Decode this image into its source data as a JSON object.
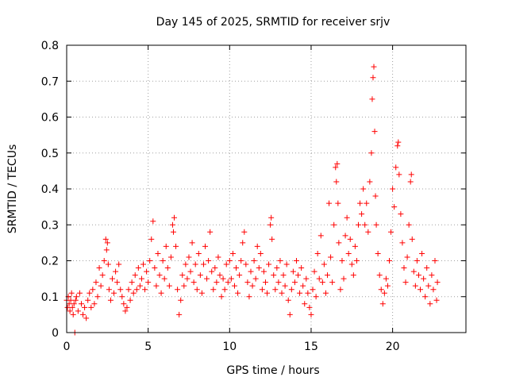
{
  "chart_data": {
    "type": "scatter",
    "title": "Day 145 of 2025, SRMTID for receiver srjv",
    "xlabel": "GPS time / hours",
    "ylabel": "SRMTID / TECUs",
    "xlim": [
      0,
      24.5
    ],
    "ylim": [
      0,
      0.8
    ],
    "xticks": [
      0,
      5,
      10,
      15,
      20
    ],
    "xtick_labels": [
      "0",
      "5",
      "10",
      "15",
      "20"
    ],
    "yticks": [
      0,
      0.1,
      0.2,
      0.3,
      0.4,
      0.5,
      0.6,
      0.7,
      0.8
    ],
    "ytick_labels": [
      "0",
      "0.1",
      "0.2",
      "0.3",
      "0.4",
      "0.5",
      "0.6",
      "0.7",
      "0.8"
    ],
    "grid": true,
    "marker": "plus",
    "color": "#ff0000",
    "series": [
      {
        "name": "SRMTID",
        "points": [
          [
            0.0,
            0.09
          ],
          [
            0.05,
            0.07
          ],
          [
            0.1,
            0.1
          ],
          [
            0.15,
            0.08
          ],
          [
            0.2,
            0.06
          ],
          [
            0.25,
            0.09
          ],
          [
            0.3,
            0.11
          ],
          [
            0.35,
            0.07
          ],
          [
            0.4,
            0.05
          ],
          [
            0.45,
            0.08
          ],
          [
            0.5,
            0.0
          ],
          [
            0.55,
            0.09
          ],
          [
            0.6,
            0.1
          ],
          [
            0.7,
            0.06
          ],
          [
            0.8,
            0.11
          ],
          [
            0.9,
            0.08
          ],
          [
            1.0,
            0.05
          ],
          [
            1.1,
            0.07
          ],
          [
            1.2,
            0.04
          ],
          [
            1.3,
            0.09
          ],
          [
            1.4,
            0.11
          ],
          [
            1.5,
            0.07
          ],
          [
            1.6,
            0.12
          ],
          [
            1.7,
            0.08
          ],
          [
            1.8,
            0.14
          ],
          [
            1.9,
            0.1
          ],
          [
            2.0,
            0.18
          ],
          [
            2.1,
            0.13
          ],
          [
            2.2,
            0.16
          ],
          [
            2.3,
            0.2
          ],
          [
            2.4,
            0.26
          ],
          [
            2.45,
            0.23
          ],
          [
            2.5,
            0.25
          ],
          [
            2.55,
            0.19
          ],
          [
            2.6,
            0.12
          ],
          [
            2.7,
            0.09
          ],
          [
            2.8,
            0.15
          ],
          [
            2.9,
            0.11
          ],
          [
            3.0,
            0.17
          ],
          [
            3.1,
            0.14
          ],
          [
            3.2,
            0.19
          ],
          [
            3.3,
            0.12
          ],
          [
            3.4,
            0.1
          ],
          [
            3.5,
            0.08
          ],
          [
            3.6,
            0.06
          ],
          [
            3.7,
            0.07
          ],
          [
            3.8,
            0.12
          ],
          [
            3.9,
            0.09
          ],
          [
            4.0,
            0.14
          ],
          [
            4.1,
            0.11
          ],
          [
            4.2,
            0.16
          ],
          [
            4.3,
            0.12
          ],
          [
            4.4,
            0.18
          ],
          [
            4.5,
            0.13
          ],
          [
            4.6,
            0.15
          ],
          [
            4.7,
            0.19
          ],
          [
            4.8,
            0.12
          ],
          [
            4.9,
            0.17
          ],
          [
            5.0,
            0.14
          ],
          [
            5.1,
            0.2
          ],
          [
            5.2,
            0.26
          ],
          [
            5.3,
            0.31
          ],
          [
            5.4,
            0.18
          ],
          [
            5.5,
            0.13
          ],
          [
            5.6,
            0.22
          ],
          [
            5.7,
            0.16
          ],
          [
            5.8,
            0.11
          ],
          [
            5.9,
            0.2
          ],
          [
            6.0,
            0.15
          ],
          [
            6.1,
            0.24
          ],
          [
            6.2,
            0.18
          ],
          [
            6.3,
            0.13
          ],
          [
            6.4,
            0.21
          ],
          [
            6.5,
            0.3
          ],
          [
            6.55,
            0.28
          ],
          [
            6.6,
            0.32
          ],
          [
            6.7,
            0.24
          ],
          [
            6.8,
            0.12
          ],
          [
            6.9,
            0.05
          ],
          [
            7.0,
            0.09
          ],
          [
            7.1,
            0.16
          ],
          [
            7.2,
            0.13
          ],
          [
            7.3,
            0.19
          ],
          [
            7.4,
            0.15
          ],
          [
            7.5,
            0.21
          ],
          [
            7.6,
            0.17
          ],
          [
            7.7,
            0.25
          ],
          [
            7.8,
            0.14
          ],
          [
            7.9,
            0.19
          ],
          [
            8.0,
            0.12
          ],
          [
            8.1,
            0.22
          ],
          [
            8.2,
            0.16
          ],
          [
            8.3,
            0.11
          ],
          [
            8.4,
            0.19
          ],
          [
            8.5,
            0.24
          ],
          [
            8.6,
            0.15
          ],
          [
            8.7,
            0.2
          ],
          [
            8.8,
            0.28
          ],
          [
            8.9,
            0.17
          ],
          [
            9.0,
            0.12
          ],
          [
            9.1,
            0.18
          ],
          [
            9.2,
            0.14
          ],
          [
            9.3,
            0.21
          ],
          [
            9.4,
            0.16
          ],
          [
            9.5,
            0.1
          ],
          [
            9.6,
            0.15
          ],
          [
            9.7,
            0.12
          ],
          [
            9.8,
            0.19
          ],
          [
            9.9,
            0.14
          ],
          [
            10.0,
            0.2
          ],
          [
            10.1,
            0.15
          ],
          [
            10.2,
            0.22
          ],
          [
            10.3,
            0.13
          ],
          [
            10.4,
            0.18
          ],
          [
            10.5,
            0.11
          ],
          [
            10.6,
            0.16
          ],
          [
            10.7,
            0.2
          ],
          [
            10.8,
            0.25
          ],
          [
            10.9,
            0.28
          ],
          [
            11.0,
            0.19
          ],
          [
            11.1,
            0.14
          ],
          [
            11.2,
            0.1
          ],
          [
            11.3,
            0.17
          ],
          [
            11.4,
            0.13
          ],
          [
            11.5,
            0.2
          ],
          [
            11.6,
            0.15
          ],
          [
            11.7,
            0.24
          ],
          [
            11.8,
            0.18
          ],
          [
            11.9,
            0.22
          ],
          [
            12.0,
            0.12
          ],
          [
            12.1,
            0.17
          ],
          [
            12.2,
            0.14
          ],
          [
            12.3,
            0.11
          ],
          [
            12.4,
            0.19
          ],
          [
            12.5,
            0.3
          ],
          [
            12.55,
            0.32
          ],
          [
            12.6,
            0.26
          ],
          [
            12.7,
            0.16
          ],
          [
            12.8,
            0.12
          ],
          [
            12.9,
            0.18
          ],
          [
            13.0,
            0.14
          ],
          [
            13.1,
            0.2
          ],
          [
            13.2,
            0.11
          ],
          [
            13.3,
            0.16
          ],
          [
            13.4,
            0.13
          ],
          [
            13.5,
            0.19
          ],
          [
            13.6,
            0.09
          ],
          [
            13.7,
            0.05
          ],
          [
            13.8,
            0.12
          ],
          [
            13.9,
            0.17
          ],
          [
            14.0,
            0.14
          ],
          [
            14.1,
            0.2
          ],
          [
            14.2,
            0.16
          ],
          [
            14.3,
            0.11
          ],
          [
            14.4,
            0.18
          ],
          [
            14.5,
            0.13
          ],
          [
            14.6,
            0.08
          ],
          [
            14.7,
            0.15
          ],
          [
            14.8,
            0.11
          ],
          [
            14.9,
            0.07
          ],
          [
            15.0,
            0.05
          ],
          [
            15.1,
            0.12
          ],
          [
            15.2,
            0.17
          ],
          [
            15.3,
            0.1
          ],
          [
            15.4,
            0.22
          ],
          [
            15.5,
            0.15
          ],
          [
            15.6,
            0.27
          ],
          [
            15.7,
            0.14
          ],
          [
            15.8,
            0.19
          ],
          [
            15.9,
            0.11
          ],
          [
            16.0,
            0.16
          ],
          [
            16.1,
            0.36
          ],
          [
            16.2,
            0.21
          ],
          [
            16.3,
            0.14
          ],
          [
            16.4,
            0.3
          ],
          [
            16.5,
            0.46
          ],
          [
            16.55,
            0.42
          ],
          [
            16.6,
            0.47
          ],
          [
            16.65,
            0.36
          ],
          [
            16.7,
            0.25
          ],
          [
            16.8,
            0.12
          ],
          [
            16.9,
            0.2
          ],
          [
            17.0,
            0.15
          ],
          [
            17.1,
            0.27
          ],
          [
            17.2,
            0.32
          ],
          [
            17.3,
            0.22
          ],
          [
            17.4,
            0.26
          ],
          [
            17.5,
            0.19
          ],
          [
            17.6,
            0.16
          ],
          [
            17.7,
            0.24
          ],
          [
            17.8,
            0.2
          ],
          [
            17.9,
            0.3
          ],
          [
            18.0,
            0.36
          ],
          [
            18.1,
            0.33
          ],
          [
            18.2,
            0.4
          ],
          [
            18.3,
            0.3
          ],
          [
            18.4,
            0.36
          ],
          [
            18.5,
            0.28
          ],
          [
            18.6,
            0.42
          ],
          [
            18.7,
            0.5
          ],
          [
            18.75,
            0.65
          ],
          [
            18.8,
            0.71
          ],
          [
            18.85,
            0.74
          ],
          [
            18.9,
            0.56
          ],
          [
            18.95,
            0.38
          ],
          [
            19.0,
            0.3
          ],
          [
            19.1,
            0.22
          ],
          [
            19.2,
            0.16
          ],
          [
            19.3,
            0.12
          ],
          [
            19.4,
            0.08
          ],
          [
            19.5,
            0.11
          ],
          [
            19.6,
            0.15
          ],
          [
            19.7,
            0.13
          ],
          [
            19.8,
            0.2
          ],
          [
            19.9,
            0.28
          ],
          [
            20.0,
            0.4
          ],
          [
            20.1,
            0.35
          ],
          [
            20.2,
            0.46
          ],
          [
            20.3,
            0.52
          ],
          [
            20.35,
            0.53
          ],
          [
            20.4,
            0.44
          ],
          [
            20.5,
            0.33
          ],
          [
            20.6,
            0.25
          ],
          [
            20.7,
            0.18
          ],
          [
            20.8,
            0.14
          ],
          [
            20.9,
            0.21
          ],
          [
            21.0,
            0.3
          ],
          [
            21.1,
            0.42
          ],
          [
            21.15,
            0.44
          ],
          [
            21.2,
            0.26
          ],
          [
            21.3,
            0.17
          ],
          [
            21.4,
            0.13
          ],
          [
            21.5,
            0.2
          ],
          [
            21.6,
            0.16
          ],
          [
            21.7,
            0.12
          ],
          [
            21.8,
            0.22
          ],
          [
            21.9,
            0.15
          ],
          [
            22.0,
            0.1
          ],
          [
            22.1,
            0.18
          ],
          [
            22.2,
            0.13
          ],
          [
            22.3,
            0.08
          ],
          [
            22.4,
            0.16
          ],
          [
            22.5,
            0.12
          ],
          [
            22.6,
            0.2
          ],
          [
            22.7,
            0.09
          ],
          [
            22.75,
            0.14
          ]
        ]
      }
    ]
  }
}
